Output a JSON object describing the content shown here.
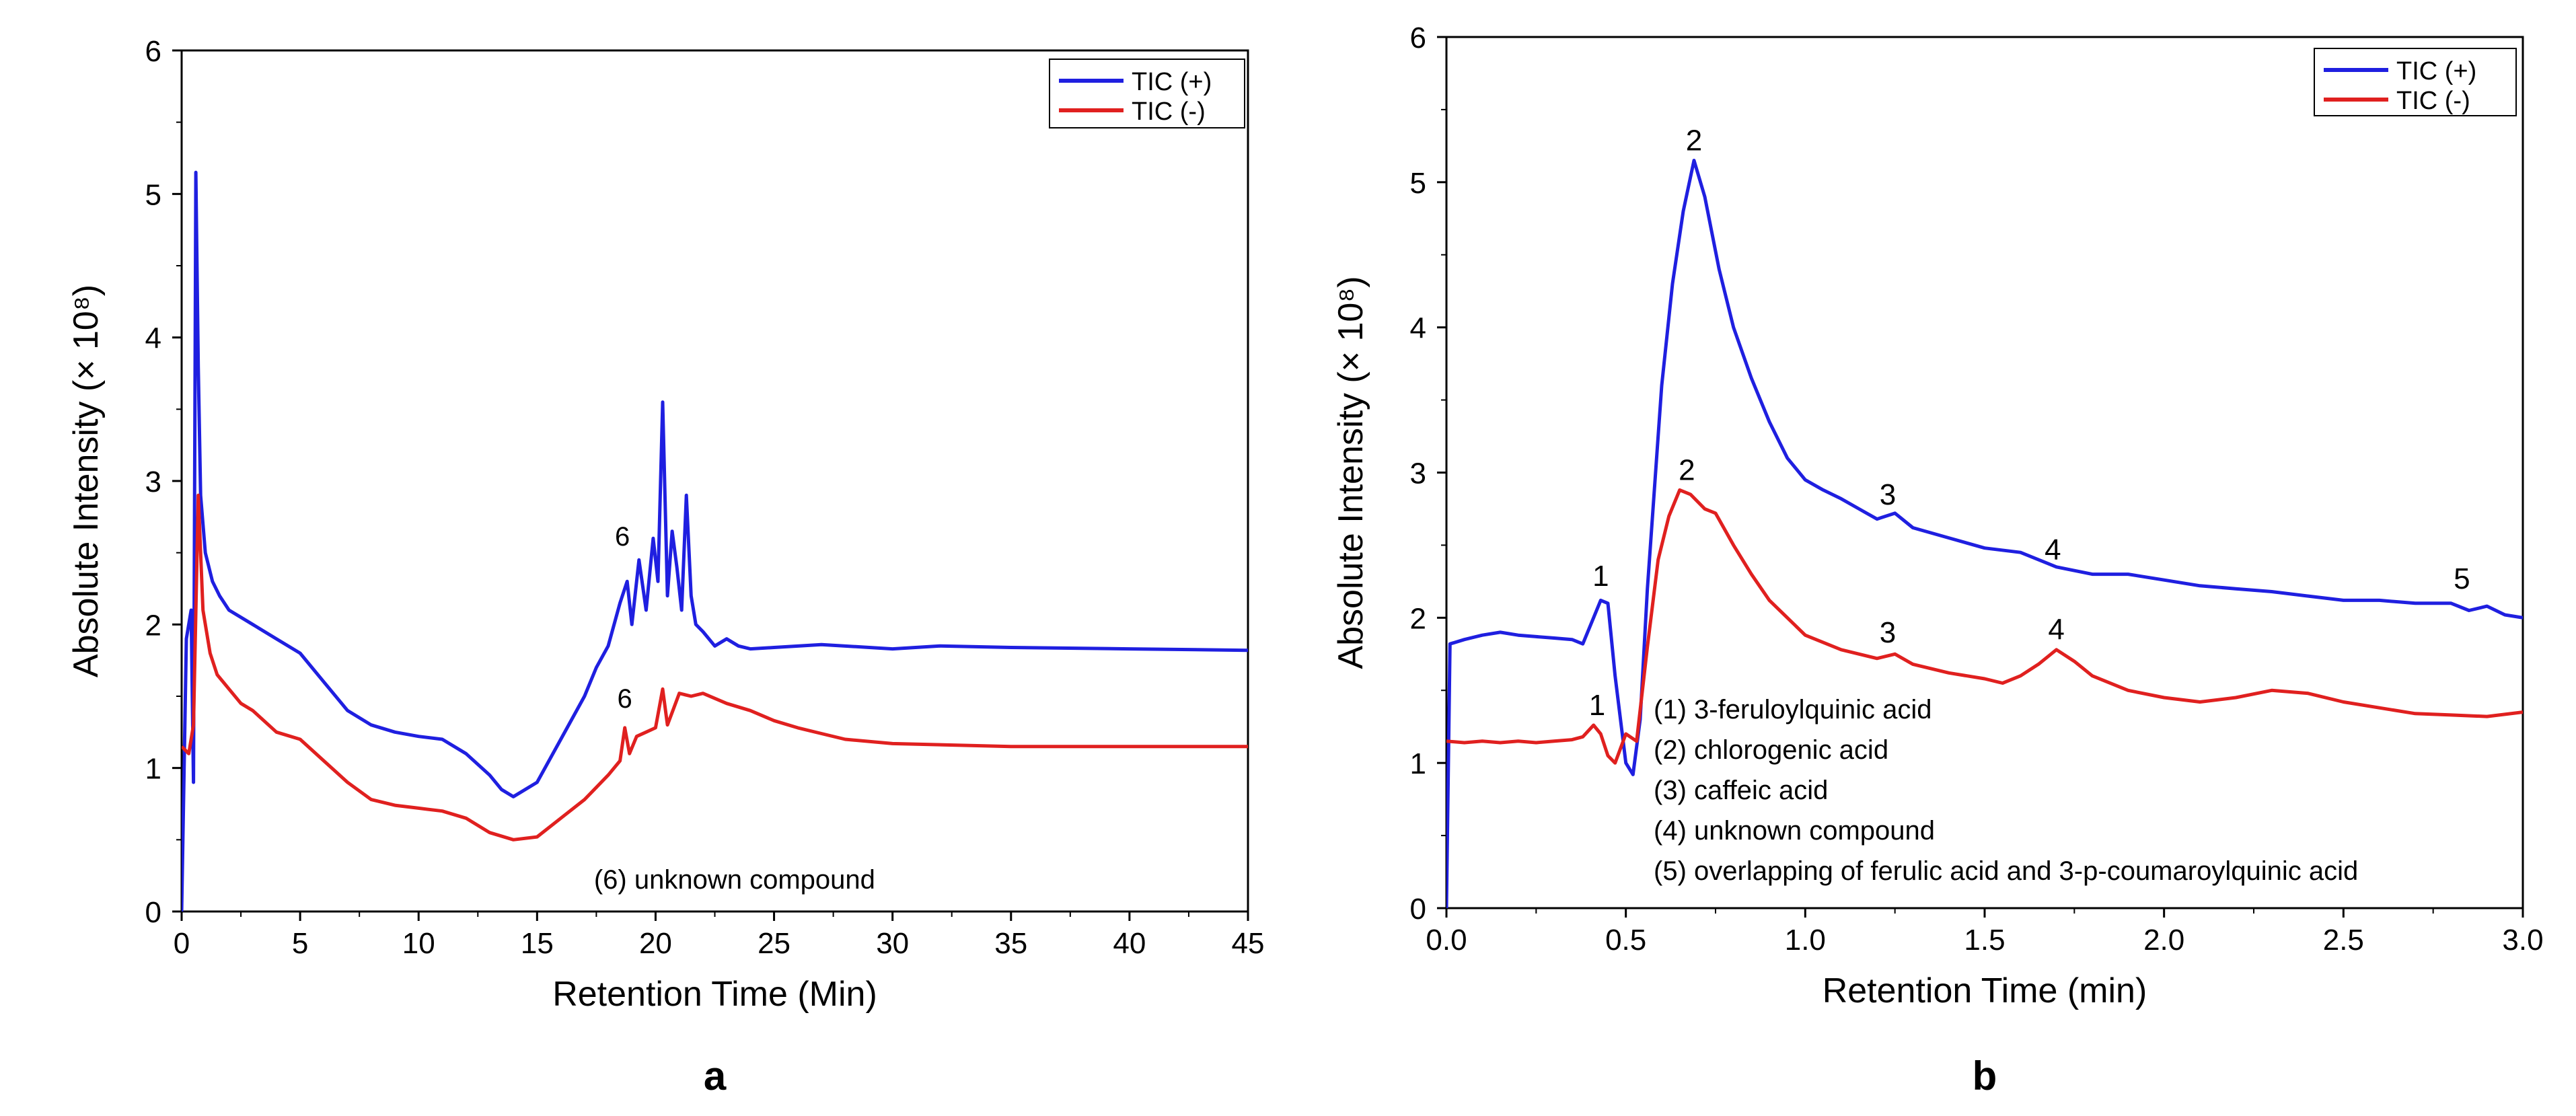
{
  "figure": {
    "panels": [
      "a",
      "b"
    ]
  },
  "colors": {
    "tic_pos": "#1f1fe0",
    "tic_neg": "#e0201f",
    "axis": "#000000"
  },
  "chart_data": [
    {
      "id": "a",
      "type": "line",
      "panel_label": "a",
      "xlabel": "Retention Time (Min)",
      "ylabel": "Absolute Intensity (× 10⁸)",
      "xlim": [
        0,
        45
      ],
      "ylim": [
        0,
        6
      ],
      "xticks": [
        0,
        5,
        10,
        15,
        20,
        25,
        30,
        35,
        40,
        45
      ],
      "xtick_labels": [
        "0",
        "5",
        "10",
        "15",
        "20",
        "25",
        "30",
        "35",
        "40",
        "45"
      ],
      "yticks": [
        0,
        1,
        2,
        3,
        4,
        5,
        6
      ],
      "ytick_labels": [
        "0",
        "1",
        "2",
        "3",
        "4",
        "5",
        "6"
      ],
      "legend": {
        "position": "top-right",
        "entries": [
          "TIC (+)",
          "TIC (-)"
        ]
      },
      "annotations": [
        {
          "text": "6",
          "x": 18.6,
          "y": 2.55
        },
        {
          "text": "6",
          "x": 18.7,
          "y": 1.42
        },
        {
          "text": "(6) unknown compound",
          "x": 17.4,
          "y": 0.16
        }
      ],
      "series": [
        {
          "name": "TIC (+)",
          "x": [
            0,
            0.2,
            0.4,
            0.5,
            0.6,
            0.7,
            0.8,
            1.0,
            1.3,
            1.6,
            2,
            3,
            4,
            5,
            6,
            7,
            8,
            9,
            10,
            11,
            12,
            13,
            13.5,
            14,
            15,
            16,
            17,
            17.5,
            18,
            18.5,
            18.8,
            19,
            19.3,
            19.6,
            19.9,
            20.1,
            20.3,
            20.5,
            20.7,
            20.9,
            21.1,
            21.3,
            21.5,
            21.7,
            22,
            22.5,
            23,
            23.5,
            24,
            25,
            27,
            30,
            32,
            35,
            40,
            45
          ],
          "y": [
            0.0,
            1.9,
            2.1,
            0.9,
            5.15,
            3.8,
            2.9,
            2.5,
            2.3,
            2.2,
            2.1,
            2.0,
            1.9,
            1.8,
            1.6,
            1.4,
            1.3,
            1.25,
            1.22,
            1.2,
            1.1,
            0.95,
            0.85,
            0.8,
            0.9,
            1.2,
            1.5,
            1.7,
            1.85,
            2.15,
            2.3,
            2.0,
            2.45,
            2.1,
            2.6,
            2.3,
            3.55,
            2.2,
            2.65,
            2.4,
            2.1,
            2.9,
            2.2,
            2.0,
            1.95,
            1.85,
            1.9,
            1.85,
            1.83,
            1.84,
            1.86,
            1.83,
            1.85,
            1.84,
            1.83,
            1.82
          ]
        },
        {
          "name": "TIC (-)",
          "x": [
            0,
            0.3,
            0.5,
            0.7,
            0.9,
            1.2,
            1.5,
            2,
            2.5,
            3,
            4,
            5,
            6,
            7,
            8,
            9,
            10,
            11,
            12,
            13,
            14,
            15,
            16,
            17,
            18,
            18.5,
            18.7,
            18.9,
            19.2,
            19.6,
            20,
            20.3,
            20.5,
            21,
            21.5,
            22,
            23,
            24,
            25,
            26,
            27,
            28,
            30,
            35,
            40,
            45
          ],
          "y": [
            1.15,
            1.1,
            1.3,
            2.9,
            2.1,
            1.8,
            1.65,
            1.55,
            1.45,
            1.4,
            1.25,
            1.2,
            1.05,
            0.9,
            0.78,
            0.74,
            0.72,
            0.7,
            0.65,
            0.55,
            0.5,
            0.52,
            0.65,
            0.78,
            0.95,
            1.05,
            1.28,
            1.1,
            1.22,
            1.25,
            1.28,
            1.55,
            1.3,
            1.52,
            1.5,
            1.52,
            1.45,
            1.4,
            1.33,
            1.28,
            1.24,
            1.2,
            1.17,
            1.15,
            1.15,
            1.15
          ]
        }
      ]
    },
    {
      "id": "b",
      "type": "line",
      "panel_label": "b",
      "xlabel": "Retention Time (min)",
      "ylabel": "Absolute Intensity (× 10⁸)",
      "xlim": [
        0,
        3
      ],
      "ylim": [
        0,
        6
      ],
      "xticks": [
        0,
        0.5,
        1,
        1.5,
        2,
        2.5,
        3
      ],
      "xtick_labels": [
        "0.0",
        "0.5",
        "1.0",
        "1.5",
        "2.0",
        "2.5",
        "3.0"
      ],
      "yticks": [
        0,
        1,
        2,
        3,
        4,
        5,
        6
      ],
      "ytick_labels": [
        "0",
        "1",
        "2",
        "3",
        "4",
        "5",
        "6"
      ],
      "legend": {
        "position": "top-right",
        "entries": [
          "TIC (+)",
          "TIC (-)"
        ]
      },
      "peak_labels": [
        {
          "text": "1",
          "x": 0.43,
          "y": 2.22
        },
        {
          "text": "2",
          "x": 0.69,
          "y": 5.22
        },
        {
          "text": "3",
          "x": 1.23,
          "y": 2.78
        },
        {
          "text": "4",
          "x": 1.69,
          "y": 2.4
        },
        {
          "text": "5",
          "x": 2.83,
          "y": 2.2
        },
        {
          "text": "1",
          "x": 0.42,
          "y": 1.33
        },
        {
          "text": "2",
          "x": 0.67,
          "y": 2.95
        },
        {
          "text": "3",
          "x": 1.23,
          "y": 1.83
        },
        {
          "text": "4",
          "x": 1.7,
          "y": 1.85
        }
      ],
      "compound_key": [
        "(1) 3-feruloylquinic acid",
        "(2) chlorogenic acid",
        "(3) caffeic acid",
        "(4) unknown compound",
        "(5) overlapping of ferulic acid and 3-p-coumaroylquinic acid"
      ],
      "series": [
        {
          "name": "TIC (+)",
          "x": [
            0,
            0.01,
            0.05,
            0.1,
            0.15,
            0.2,
            0.25,
            0.3,
            0.35,
            0.38,
            0.41,
            0.43,
            0.45,
            0.47,
            0.5,
            0.52,
            0.54,
            0.56,
            0.6,
            0.63,
            0.66,
            0.69,
            0.72,
            0.76,
            0.8,
            0.85,
            0.9,
            0.95,
            1.0,
            1.05,
            1.1,
            1.15,
            1.2,
            1.25,
            1.3,
            1.4,
            1.5,
            1.6,
            1.7,
            1.8,
            1.9,
            2.0,
            2.1,
            2.2,
            2.3,
            2.4,
            2.5,
            2.6,
            2.7,
            2.8,
            2.85,
            2.9,
            2.95,
            3.0
          ],
          "y": [
            0.0,
            1.82,
            1.85,
            1.88,
            1.9,
            1.88,
            1.87,
            1.86,
            1.85,
            1.82,
            2.0,
            2.12,
            2.1,
            1.6,
            1.0,
            0.92,
            1.3,
            2.2,
            3.6,
            4.3,
            4.8,
            5.15,
            4.9,
            4.4,
            4.0,
            3.65,
            3.35,
            3.1,
            2.95,
            2.88,
            2.82,
            2.75,
            2.68,
            2.72,
            2.62,
            2.55,
            2.48,
            2.45,
            2.35,
            2.3,
            2.3,
            2.26,
            2.22,
            2.2,
            2.18,
            2.15,
            2.12,
            2.12,
            2.1,
            2.1,
            2.05,
            2.08,
            2.02,
            2.0
          ]
        },
        {
          "name": "TIC (-)",
          "x": [
            0,
            0.05,
            0.1,
            0.15,
            0.2,
            0.25,
            0.3,
            0.35,
            0.38,
            0.41,
            0.43,
            0.45,
            0.47,
            0.5,
            0.53,
            0.56,
            0.59,
            0.62,
            0.65,
            0.68,
            0.72,
            0.75,
            0.8,
            0.85,
            0.9,
            0.95,
            1.0,
            1.1,
            1.2,
            1.25,
            1.3,
            1.4,
            1.5,
            1.55,
            1.6,
            1.65,
            1.7,
            1.75,
            1.8,
            1.9,
            2.0,
            2.1,
            2.2,
            2.3,
            2.4,
            2.5,
            2.6,
            2.7,
            2.8,
            2.9,
            3.0
          ],
          "y": [
            1.15,
            1.14,
            1.15,
            1.14,
            1.15,
            1.14,
            1.15,
            1.16,
            1.18,
            1.26,
            1.2,
            1.05,
            1.0,
            1.2,
            1.15,
            1.8,
            2.4,
            2.7,
            2.88,
            2.85,
            2.75,
            2.72,
            2.5,
            2.3,
            2.12,
            2.0,
            1.88,
            1.78,
            1.72,
            1.75,
            1.68,
            1.62,
            1.58,
            1.55,
            1.6,
            1.68,
            1.78,
            1.7,
            1.6,
            1.5,
            1.45,
            1.42,
            1.45,
            1.5,
            1.48,
            1.42,
            1.38,
            1.34,
            1.33,
            1.32,
            1.35
          ]
        }
      ]
    }
  ]
}
